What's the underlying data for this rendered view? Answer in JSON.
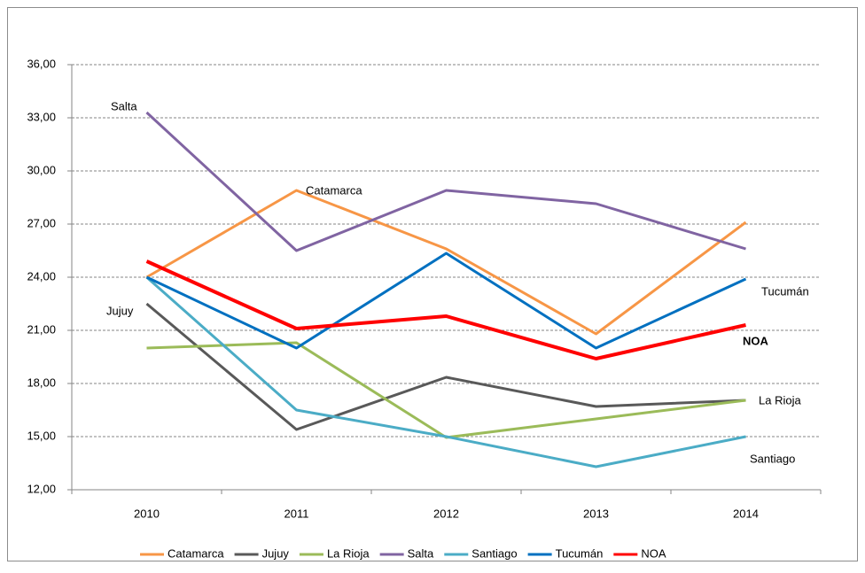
{
  "chart_data": {
    "type": "line",
    "categories": [
      "2010",
      "2011",
      "2012",
      "2013",
      "2014"
    ],
    "series": [
      {
        "name": "Catamarca",
        "color": "#f79646",
        "values": [
          24.0,
          28.9,
          25.6,
          20.8,
          27.1
        ]
      },
      {
        "name": "Jujuy",
        "color": "#595959",
        "values": [
          22.5,
          15.4,
          18.35,
          16.7,
          17.05
        ]
      },
      {
        "name": "La Rioja",
        "color": "#9bbb59",
        "values": [
          20.0,
          20.3,
          14.95,
          16.0,
          17.05
        ]
      },
      {
        "name": "Salta",
        "color": "#8064a2",
        "values": [
          33.3,
          25.5,
          28.9,
          28.15,
          25.6
        ]
      },
      {
        "name": "Santiago",
        "color": "#4bacc6",
        "values": [
          24.0,
          16.5,
          15.0,
          13.3,
          15.0
        ]
      },
      {
        "name": "Tucumán",
        "color": "#0070c0",
        "values": [
          24.0,
          20.0,
          25.35,
          20.0,
          23.9
        ]
      },
      {
        "name": "NOA",
        "color": "#ff0000",
        "values": [
          24.9,
          21.1,
          21.8,
          19.4,
          21.3
        ]
      }
    ],
    "ylim": [
      12,
      36
    ],
    "yticks": [
      {
        "value": 12,
        "label": "12,00"
      },
      {
        "value": 15,
        "label": "15,00"
      },
      {
        "value": 18,
        "label": "18,00"
      },
      {
        "value": 21,
        "label": "21,00"
      },
      {
        "value": 24,
        "label": "24,00"
      },
      {
        "value": 27,
        "label": "27,00"
      },
      {
        "value": 30,
        "label": "30,00"
      },
      {
        "value": 33,
        "label": "33,00"
      },
      {
        "value": 36,
        "label": "36,00"
      }
    ],
    "grid": true,
    "legend": "bottom",
    "annotations": [
      "Salta",
      "Catamarca",
      "Jujuy",
      "Tucumán",
      "NOA",
      "La Rioja",
      "Santiago"
    ]
  }
}
